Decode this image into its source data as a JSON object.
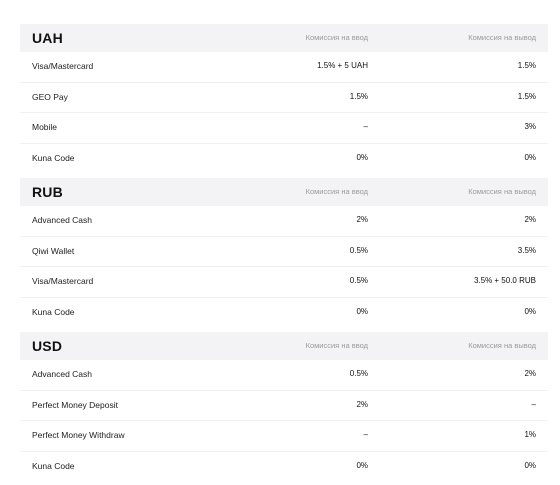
{
  "sections": [
    {
      "currency": "UAH",
      "deposit_header": "Комиссия на ввод",
      "withdraw_header": "Комиссия на вывод",
      "rows": [
        {
          "method": "Visa/Mastercard",
          "deposit": "1.5% + 5 UAH",
          "withdraw": "1.5%"
        },
        {
          "method": "GEO Pay",
          "deposit": "1.5%",
          "withdraw": "1.5%"
        },
        {
          "method": "Mobile",
          "deposit": "–",
          "withdraw": "3%"
        },
        {
          "method": "Kuna Code",
          "deposit": "0%",
          "withdraw": "0%"
        }
      ]
    },
    {
      "currency": "RUB",
      "deposit_header": "Комиссия на ввод",
      "withdraw_header": "Комиссия на вывод",
      "rows": [
        {
          "method": "Advanced Cash",
          "deposit": "2%",
          "withdraw": "2%"
        },
        {
          "method": "Qiwi Wallet",
          "deposit": "0.5%",
          "withdraw": "3.5%"
        },
        {
          "method": "Visa/Mastercard",
          "deposit": "0.5%",
          "withdraw": "3.5% + 50.0 RUB"
        },
        {
          "method": "Kuna Code",
          "deposit": "0%",
          "withdraw": "0%"
        }
      ]
    },
    {
      "currency": "USD",
      "deposit_header": "Комиссия на ввод",
      "withdraw_header": "Комиссия на вывод",
      "rows": [
        {
          "method": "Advanced Cash",
          "deposit": "0.5%",
          "withdraw": "2%"
        },
        {
          "method": "Perfect Money Deposit",
          "deposit": "2%",
          "withdraw": "–"
        },
        {
          "method": "Perfect Money Withdraw",
          "deposit": "–",
          "withdraw": "1%"
        },
        {
          "method": "Kuna Code",
          "deposit": "0%",
          "withdraw": "0%"
        }
      ]
    }
  ]
}
